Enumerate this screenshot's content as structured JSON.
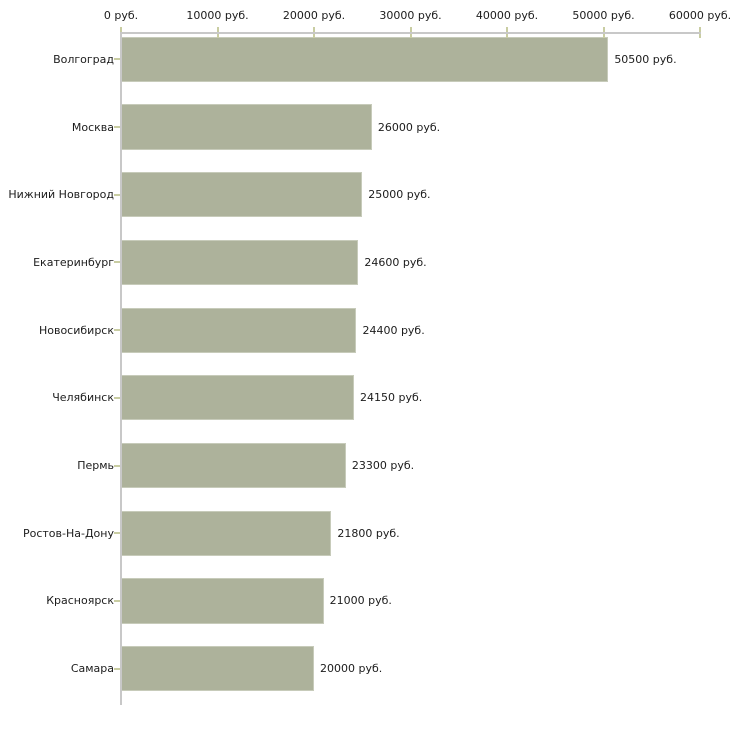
{
  "chart_data": {
    "type": "bar",
    "orientation": "horizontal",
    "title": "",
    "categories": [
      "Волгоград",
      "Москва",
      "Нижний Новгород",
      "Екатеринбург",
      "Новосибирск",
      "Челябинск",
      "Пермь",
      "Ростов-На-Дону",
      "Красноярск",
      "Самара"
    ],
    "values": [
      50500,
      26000,
      25000,
      24600,
      24400,
      24150,
      23300,
      21800,
      21000,
      20000
    ],
    "value_labels": [
      "50500 руб.",
      "26000 руб.",
      "25000 руб.",
      "24600 руб.",
      "24400 руб.",
      "24150 руб.",
      "23300 руб.",
      "21800 руб.",
      "21000 руб.",
      "20000 руб."
    ],
    "unit": "руб.",
    "x_axis": {
      "position": "top",
      "min": 0,
      "max": 60000,
      "tick_interval": 10000,
      "tick_labels": [
        "0 руб.",
        "10000 руб.",
        "20000 руб.",
        "30000 руб.",
        "40000 руб.",
        "50000 руб.",
        "60000 руб."
      ]
    },
    "grid": false,
    "legend": false,
    "colors": {
      "bar_fill": "#adb29b",
      "bar_border": "#c7cbba",
      "axis_line": "#c8c8c8",
      "tick_mark": "#c9cda2",
      "text": "#1c1c1c",
      "background": "#ffffff"
    }
  }
}
